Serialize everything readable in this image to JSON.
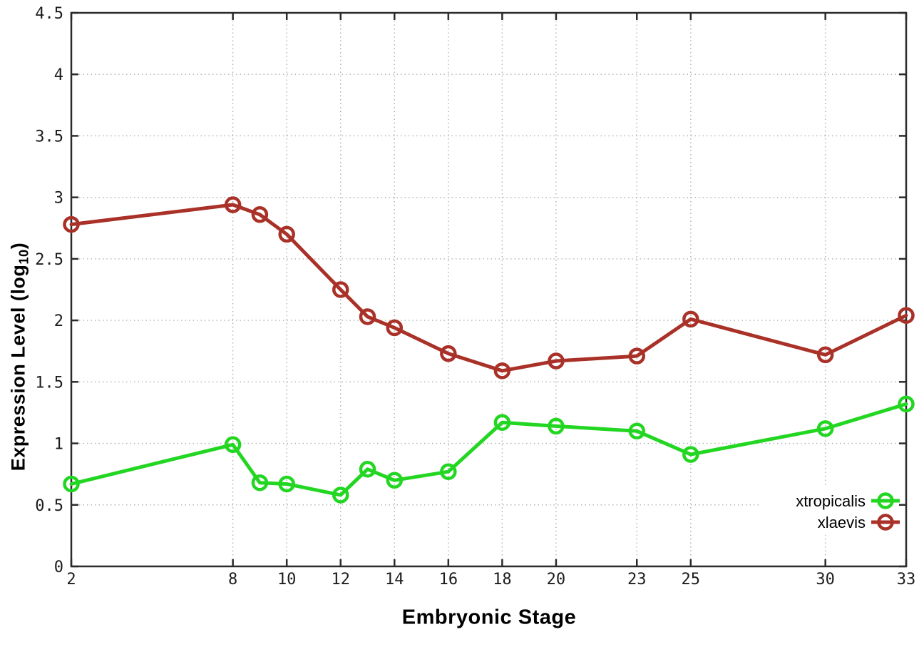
{
  "background_color": "#ffffff",
  "border_color": "#2b2b2b",
  "grid_color": "#b0b0b0",
  "chart_data": {
    "type": "line",
    "title": "",
    "xlabel": "Embryonic Stage",
    "ylabel": "Expression Level (log10)",
    "ylabel_parts": {
      "pre": "Expression Level (log",
      "sub": "10",
      "post": ")"
    },
    "x": [
      2,
      8,
      9,
      10,
      12,
      13,
      14,
      16,
      18,
      20,
      23,
      25,
      30,
      33
    ],
    "xticks": [
      2,
      8,
      10,
      12,
      14,
      16,
      18,
      20,
      23,
      25,
      30,
      33
    ],
    "yticks": [
      0,
      0.5,
      1,
      1.5,
      2,
      2.5,
      3,
      3.5,
      4,
      4.5
    ],
    "xlim": [
      2,
      33
    ],
    "ylim": [
      0,
      4.5
    ],
    "grid": true,
    "legend_position": "inside-bottom-right",
    "series": [
      {
        "name": "xtropicalis",
        "color": "#22d622",
        "marker": "open-circle",
        "values": [
          0.67,
          0.99,
          0.68,
          0.67,
          0.58,
          0.79,
          0.7,
          0.77,
          1.17,
          1.14,
          1.1,
          0.91,
          1.12,
          1.32
        ]
      },
      {
        "name": "xlaevis",
        "color": "#a93128",
        "marker": "open-circle",
        "values": [
          2.78,
          2.94,
          2.86,
          2.7,
          2.25,
          2.03,
          1.94,
          1.73,
          1.59,
          1.67,
          1.71,
          2.01,
          1.72,
          2.04
        ]
      }
    ]
  }
}
